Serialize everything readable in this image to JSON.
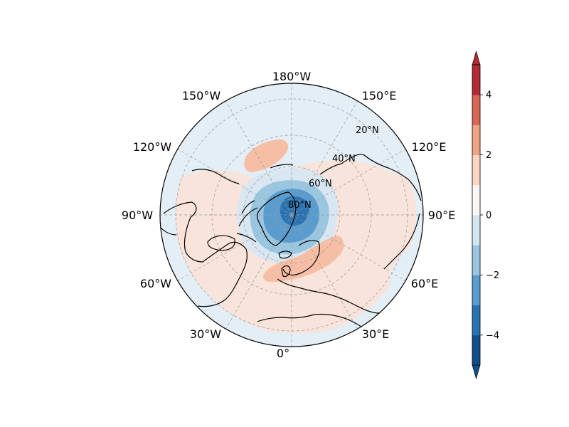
{
  "map": {
    "projection": "north-polar-stereographic",
    "longitude_labels": [
      {
        "lon": 180,
        "text": "180°W"
      },
      {
        "lon": -150,
        "text": "150°W"
      },
      {
        "lon": 150,
        "text": "150°E"
      },
      {
        "lon": -120,
        "text": "120°W"
      },
      {
        "lon": 120,
        "text": "120°E"
      },
      {
        "lon": -90,
        "text": "90°W"
      },
      {
        "lon": 90,
        "text": "90°E"
      },
      {
        "lon": -60,
        "text": "60°W"
      },
      {
        "lon": 60,
        "text": "60°E"
      },
      {
        "lon": -30,
        "text": "30°W"
      },
      {
        "lon": 30,
        "text": "30°E"
      },
      {
        "lon": 0,
        "text": "0°"
      }
    ],
    "latitude_labels": [
      {
        "lat": 20,
        "text": "20°N"
      },
      {
        "lat": 40,
        "text": "40°N"
      },
      {
        "lat": 60,
        "text": "60°N"
      },
      {
        "lat": 80,
        "text": "80°N"
      }
    ],
    "gridline_color": "#9a9a9a"
  },
  "colorbar": {
    "min": -5,
    "max": 5,
    "levels": [
      -5,
      -4,
      -3,
      -2,
      -1,
      0,
      1,
      2,
      3,
      4,
      5
    ],
    "colors": [
      "#124e89",
      "#2a72b2",
      "#5a9ccd",
      "#9bc6e0",
      "#d3e5f0",
      "#f9f6f5",
      "#f9d6c3",
      "#eea483",
      "#d76654",
      "#b12a34",
      "#67001f"
    ],
    "extend": "both",
    "ticks": [
      {
        "value": 4,
        "text": "4"
      },
      {
        "value": 2,
        "text": "2"
      },
      {
        "value": 0,
        "text": "0"
      },
      {
        "value": -2,
        "text": "−2"
      },
      {
        "value": -4,
        "text": "−4"
      }
    ]
  },
  "anomaly_field": {
    "background_level_color": "#d3e5f0",
    "features": [
      {
        "name": "north-atlantic-positive-anomaly",
        "lat": 52,
        "lon": 8,
        "value": 2
      },
      {
        "name": "north-pacific-positive-anomaly",
        "lat": 48,
        "lon": -165,
        "value": 2
      },
      {
        "name": "arctic-negative-anomaly",
        "lat": 82,
        "lon": -40,
        "value": -4
      },
      {
        "name": "eurasia-weak-positive-anomaly",
        "lat": 45,
        "lon": 90,
        "value": 0.5
      },
      {
        "name": "north-america-weak-positive-anomaly",
        "lat": 45,
        "lon": -100,
        "value": 0.5
      }
    ]
  }
}
